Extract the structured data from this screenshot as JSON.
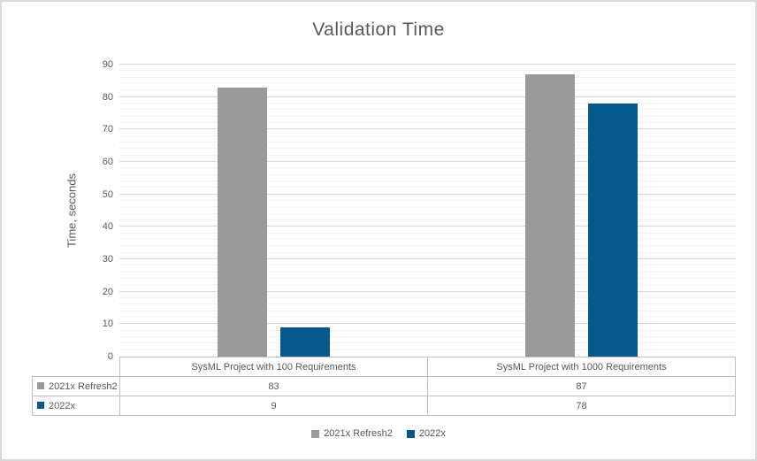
{
  "window": {
    "background": "#FFFFFF",
    "border_color": "#D9D9D9"
  },
  "chart_data": {
    "type": "bar",
    "title": "Validation Time",
    "xlabel": "",
    "ylabel": "Time, seconds",
    "categories": [
      "SysML Project with 100 Requirements",
      "SysML Project with 1000 Requirements"
    ],
    "series": [
      {
        "name": "2021x Refresh2",
        "color": "#9A9A9A",
        "values": [
          83,
          87
        ]
      },
      {
        "name": "2022x",
        "color": "#07588A",
        "values": [
          9,
          78
        ]
      }
    ],
    "ylim": [
      0,
      90
    ],
    "yticks": [
      0,
      10,
      20,
      30,
      40,
      50,
      60,
      70,
      80,
      90
    ],
    "minor_unit": 2,
    "grid": "horizontal major+minor",
    "major_grid_color": "#D9D9D9",
    "minor_grid_color": "#F1F1F1",
    "text_color": "#595959",
    "table_border_color": "#BFBFBF",
    "legend_position": "bottom",
    "data_table_shown": true
  }
}
